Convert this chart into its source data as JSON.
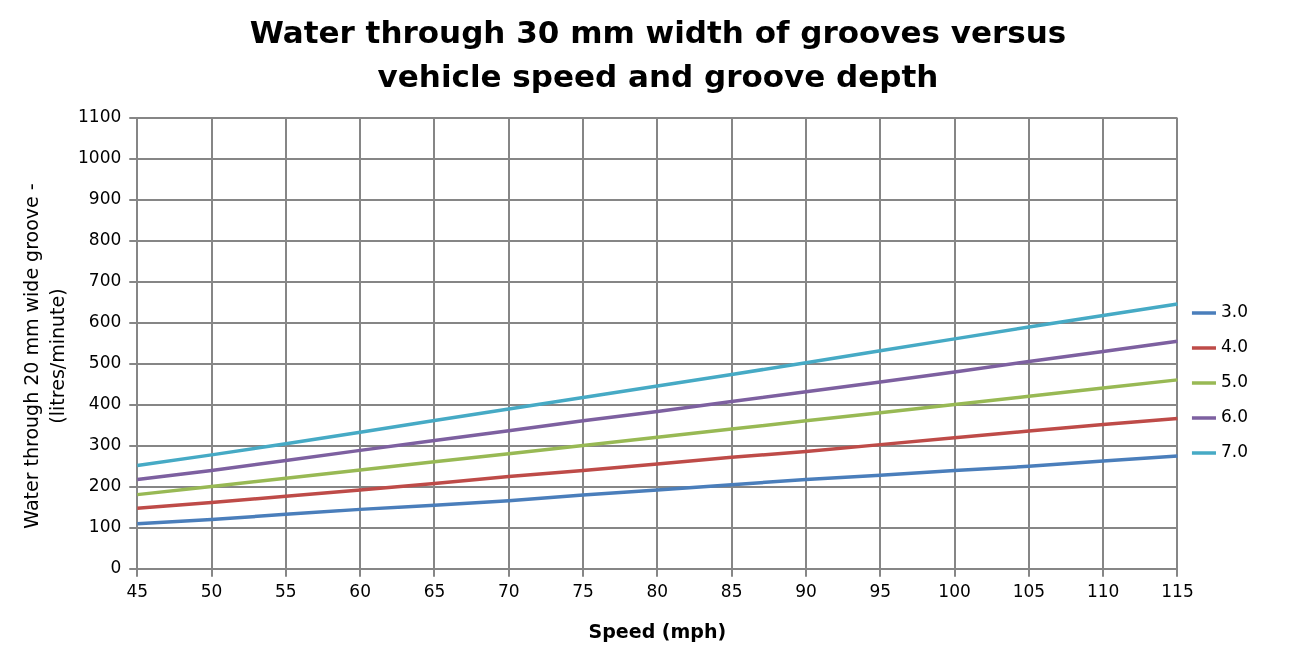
{
  "chart_data": {
    "type": "line",
    "title": "Water through 30 mm width of grooves versus vehicle speed and groove depth",
    "xlabel": "Speed (mph)",
    "ylabel": "Water through 20 mm wide groove - (litres/minute)",
    "categories": [
      "45",
      "50",
      "55",
      "60",
      "65",
      "70",
      "75",
      "80",
      "85",
      "90",
      "95",
      "100",
      "105",
      "110",
      "115"
    ],
    "series": [
      {
        "name": "3.0",
        "color": "#4a7ebb",
        "values": [
          110,
          120,
          133,
          145,
          155,
          166,
          180,
          192,
          205,
          218,
          228,
          240,
          250,
          263,
          275
        ]
      },
      {
        "name": "4.0",
        "color": "#be4b48",
        "values": [
          148,
          162,
          177,
          192,
          208,
          225,
          240,
          256,
          272,
          286,
          303,
          320,
          336,
          352,
          367
        ]
      },
      {
        "name": "5.0",
        "color": "#98b954",
        "values": [
          181,
          201,
          221,
          241,
          261,
          281,
          301,
          321,
          341,
          361,
          381,
          401,
          421,
          441,
          461
        ]
      },
      {
        "name": "6.0",
        "color": "#7d60a0",
        "values": [
          218,
          240,
          264,
          289,
          313,
          337,
          361,
          384,
          408,
          432,
          456,
          480,
          506,
          530,
          555
        ]
      },
      {
        "name": "7.0",
        "color": "#46aac5",
        "values": [
          252,
          278,
          305,
          333,
          362,
          390,
          418,
          446,
          474,
          503,
          532,
          561,
          590,
          618,
          646
        ]
      }
    ],
    "ylim": [
      0,
      1100
    ],
    "yticks": [
      0,
      100,
      200,
      300,
      400,
      500,
      600,
      700,
      800,
      900,
      1000,
      1100
    ],
    "grid": true,
    "legend": "right",
    "marker": "none",
    "line_style": "solid"
  }
}
